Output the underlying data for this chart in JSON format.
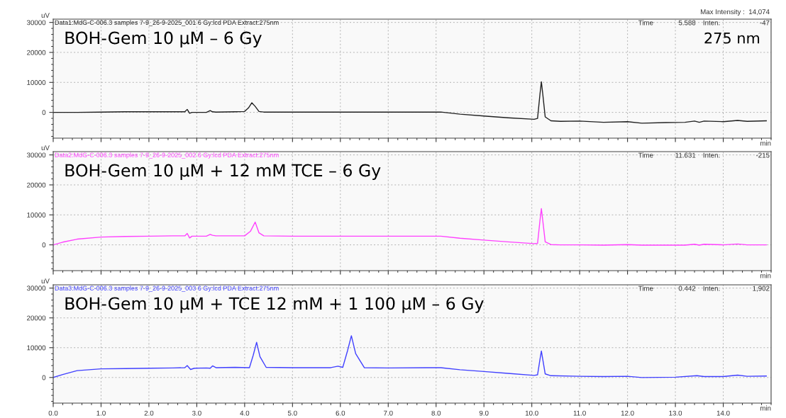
{
  "chart_data": [
    {
      "type": "line",
      "xlabel": "min",
      "ylabel": "uV",
      "xlim": [
        0,
        15
      ],
      "ylim": [
        -8600,
        31100
      ],
      "xticks": [
        {
          "value": 0,
          "label": null
        },
        {
          "value": 1,
          "label": null
        },
        {
          "value": 2,
          "label": null
        },
        {
          "value": 3,
          "label": null
        },
        {
          "value": 4,
          "label": null
        },
        {
          "value": 5,
          "label": null
        },
        {
          "value": 6,
          "label": null
        },
        {
          "value": 7,
          "label": null
        },
        {
          "value": 8,
          "label": null
        },
        {
          "value": 9,
          "label": null
        },
        {
          "value": 10,
          "label": null
        },
        {
          "value": 11,
          "label": null
        },
        {
          "value": 12,
          "label": null
        },
        {
          "value": 13,
          "label": null
        },
        {
          "value": 14,
          "label": null
        }
      ],
      "yticks": [
        0,
        10000,
        20000,
        30000
      ],
      "grid": true,
      "tick_labels": "y",
      "annotations": [
        "Data1:MdG-C-006.3 samples 7-9_26-9-2025_001 6 Gy:lcd PDA Extract:275nm",
        "BOH-Gem 10 µM – 6 Gy",
        "Time",
        "5.588",
        "Inten.",
        "-47",
        "275 nm",
        "Max Intensity :  14,074"
      ],
      "series": [
        {
          "color": "#202020",
          "x": [
            0,
            0.5,
            1,
            1.5,
            2,
            2.5,
            2.75,
            2.8,
            2.85,
            2.9,
            3.2,
            3.28,
            3.33,
            3.4,
            3.8,
            4.0,
            4.08,
            4.15,
            4.22,
            4.3,
            4.4,
            5,
            6,
            7,
            8.0,
            8.1,
            8.5,
            9.0,
            9.5,
            10.05,
            10.12,
            10.17,
            10.2,
            10.23,
            10.28,
            10.4,
            10.6,
            11.0,
            11.5,
            12.0,
            12.3,
            12.8,
            13.2,
            13.4,
            13.5,
            13.6,
            14.0,
            14.3,
            14.5,
            14.9
          ],
          "values": [
            0,
            0,
            100,
            200,
            200,
            200,
            200,
            1000,
            -300,
            0,
            0,
            600,
            200,
            100,
            200,
            300,
            1500,
            3200,
            2000,
            300,
            100,
            100,
            100,
            100,
            100,
            100,
            -600,
            -1200,
            -1800,
            -2300,
            -2000,
            6000,
            10200,
            6000,
            -1500,
            -2800,
            -3000,
            -2900,
            -3300,
            -3100,
            -3600,
            -3400,
            -3300,
            -2900,
            -3300,
            -2900,
            -3100,
            -2700,
            -3000,
            -2800
          ]
        }
      ]
    },
    {
      "type": "line",
      "xlabel": "min",
      "ylabel": "uV",
      "xlim": [
        0,
        15
      ],
      "ylim": [
        -8600,
        31100
      ],
      "xticks": [
        {
          "value": 0,
          "label": null
        },
        {
          "value": 1,
          "label": null
        },
        {
          "value": 2,
          "label": null
        },
        {
          "value": 3,
          "label": null
        },
        {
          "value": 4,
          "label": null
        },
        {
          "value": 5,
          "label": null
        },
        {
          "value": 6,
          "label": null
        },
        {
          "value": 7,
          "label": null
        },
        {
          "value": 8,
          "label": null
        },
        {
          "value": 9,
          "label": null
        },
        {
          "value": 10,
          "label": null
        },
        {
          "value": 11,
          "label": null
        },
        {
          "value": 12,
          "label": null
        },
        {
          "value": 13,
          "label": null
        },
        {
          "value": 14,
          "label": null
        }
      ],
      "yticks": [
        0,
        10000,
        20000,
        30000
      ],
      "grid": true,
      "tick_labels": "y",
      "annotations": [
        "Data2:MdG-C-006.3 samples 7-9_26-9-2025_002 6 Gy:lcd PDA Extract:275nm",
        "BOH-Gem 10 µM + 12 mM TCE – 6 Gy",
        "Time",
        "11.631",
        "Inten.",
        "-215"
      ],
      "series": [
        {
          "color": "#ff40ff",
          "x": [
            0,
            0.2,
            0.5,
            1,
            1.5,
            2,
            2.5,
            2.75,
            2.8,
            2.85,
            2.9,
            3.2,
            3.28,
            3.33,
            3.4,
            3.8,
            4.0,
            4.12,
            4.22,
            4.3,
            4.4,
            5,
            6,
            7,
            8.0,
            8.1,
            8.5,
            9.0,
            9.5,
            10.05,
            10.12,
            10.17,
            10.2,
            10.23,
            10.28,
            10.4,
            10.6,
            11.0,
            11.5,
            12.0,
            12.3,
            12.8,
            13.2,
            13.4,
            13.5,
            13.6,
            14.0,
            14.3,
            14.5,
            14.9
          ],
          "values": [
            0,
            900,
            1900,
            2600,
            2800,
            2900,
            3000,
            3000,
            3800,
            2300,
            2900,
            2900,
            3500,
            3200,
            3000,
            3000,
            3000,
            4500,
            7600,
            4000,
            3000,
            2900,
            2900,
            2900,
            2900,
            2900,
            2200,
            1600,
            1000,
            400,
            500,
            8000,
            12100,
            8000,
            1000,
            100,
            0,
            0,
            -100,
            100,
            -100,
            -100,
            -100,
            200,
            -100,
            200,
            0,
            300,
            0,
            0
          ]
        }
      ]
    },
    {
      "type": "line",
      "xlabel": "min",
      "ylabel": "uV",
      "xlim": [
        0,
        15
      ],
      "ylim": [
        -8600,
        31100
      ],
      "xticks": [
        {
          "value": 0,
          "label": "0.0"
        },
        {
          "value": 1,
          "label": "1.0"
        },
        {
          "value": 2,
          "label": "2.0"
        },
        {
          "value": 3,
          "label": "3.0"
        },
        {
          "value": 4,
          "label": "4.0"
        },
        {
          "value": 5,
          "label": "5.0"
        },
        {
          "value": 6,
          "label": "6.0"
        },
        {
          "value": 7,
          "label": "7.0"
        },
        {
          "value": 8,
          "label": "8.0"
        },
        {
          "value": 9,
          "label": "9.0"
        },
        {
          "value": 10,
          "label": "10.0"
        },
        {
          "value": 11,
          "label": "11.0"
        },
        {
          "value": 12,
          "label": "12.0"
        },
        {
          "value": 13,
          "label": "13.0"
        },
        {
          "value": 14,
          "label": "14.0"
        }
      ],
      "yticks": [
        0,
        10000,
        20000,
        30000
      ],
      "grid": true,
      "annotations": [
        "Data3:MdG-C-006.3 samples 7-9_26-9-2025_003 6 Gy:lcd PDA Extract:275nm",
        "BOH-Gem 10 µM + TCE 12 mM + 1 100 µM – 6 Gy",
        "Time",
        "0.442",
        "Inten.",
        "1,902"
      ],
      "series": [
        {
          "color": "#4040ff",
          "x": [
            0,
            0.2,
            0.5,
            1,
            1.5,
            2,
            2.5,
            2.75,
            2.8,
            2.87,
            2.95,
            3.2,
            3.28,
            3.33,
            3.4,
            3.8,
            4.1,
            4.18,
            4.25,
            4.32,
            4.45,
            5,
            5.8,
            5.95,
            6.05,
            6.15,
            6.23,
            6.32,
            6.5,
            7,
            7.8,
            8.1,
            8.5,
            9.0,
            9.5,
            10.05,
            10.12,
            10.17,
            10.2,
            10.23,
            10.28,
            10.4,
            11.0,
            11.5,
            12.0,
            12.3,
            13.0,
            13.45,
            13.6,
            14.0,
            14.3,
            14.5,
            14.9
          ],
          "values": [
            0,
            1000,
            2300,
            2900,
            3000,
            3100,
            3200,
            3300,
            4000,
            2700,
            3100,
            3200,
            3100,
            3900,
            3300,
            3400,
            3300,
            7500,
            11800,
            7000,
            3400,
            3300,
            3300,
            3800,
            3400,
            9000,
            14000,
            8000,
            3300,
            3200,
            3300,
            3300,
            2600,
            2000,
            1400,
            700,
            900,
            6000,
            8900,
            6000,
            1200,
            600,
            400,
            300,
            400,
            0,
            100,
            600,
            300,
            300,
            800,
            400,
            500
          ]
        }
      ]
    }
  ]
}
